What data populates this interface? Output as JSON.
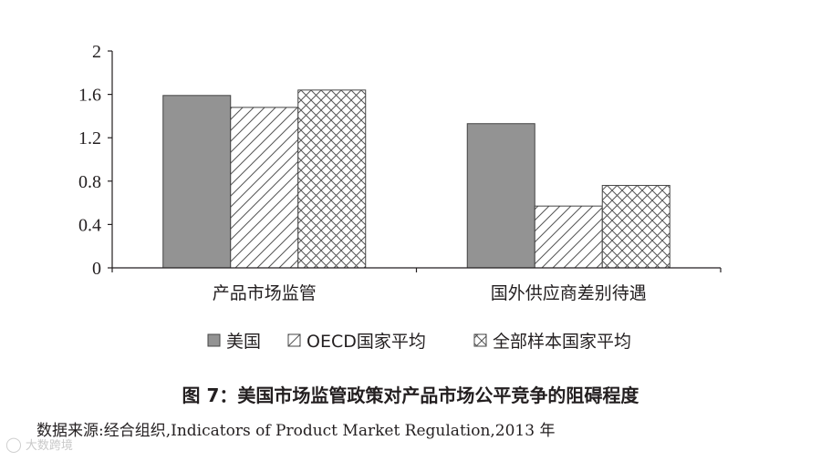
{
  "chart_data": {
    "type": "bar",
    "categories": [
      "产品市场监管",
      "国外供应商差别待遇"
    ],
    "series": [
      {
        "name": "美国",
        "values": [
          1.59,
          1.33
        ],
        "pattern": "solid",
        "color": "#939393"
      },
      {
        "name": "OECD国家平均",
        "values": [
          1.48,
          0.57
        ],
        "pattern": "diagonal",
        "color": "#ffffff"
      },
      {
        "name": "全部样本国家平均",
        "values": [
          1.64,
          0.76
        ],
        "pattern": "crosshatch",
        "color": "#ffffff"
      }
    ],
    "yticks": [
      "0",
      "0.4",
      "0.8",
      "1.2",
      "1.6",
      "2"
    ],
    "ylim": [
      0,
      2
    ],
    "grid": false,
    "legend_position": "bottom"
  },
  "caption": "图 7：美国市场监管政策对产品市场公平竞争的阻碍程度",
  "source": "数据来源:经合组织,Indicators of Product Market Regulation,2013 年",
  "watermark": {
    "icon": "logo-mark",
    "text": "大数跨境"
  }
}
